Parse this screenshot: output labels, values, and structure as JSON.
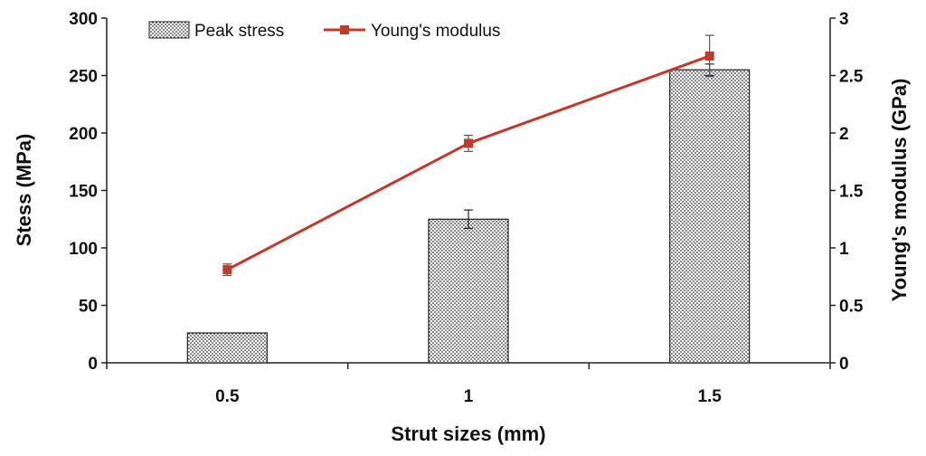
{
  "chart_data": {
    "type": "bar+line",
    "categories": [
      "0.5",
      "1",
      "1.5"
    ],
    "xlabel": "Strut sizes (mm)",
    "ylabel_left": "Stess (MPa)",
    "ylabel_right": "Young's modulus (GPa)",
    "ylim_left": [
      0,
      300
    ],
    "ylim_right": [
      0,
      3
    ],
    "yticks_left": [
      "0",
      "50",
      "100",
      "150",
      "200",
      "250",
      "300"
    ],
    "yticks_right": [
      "0",
      "0.5",
      "1",
      "1.5",
      "2",
      "2.5",
      "3"
    ],
    "grid": false,
    "legend_position": "top",
    "series": [
      {
        "name": "Peak stress",
        "type": "bar",
        "axis": "left",
        "values": [
          26,
          125,
          255
        ],
        "errors": [
          0,
          8,
          5
        ]
      },
      {
        "name": "Young's modulus",
        "type": "line",
        "axis": "right",
        "color": "#c0392b",
        "values": [
          0.81,
          1.91,
          2.67
        ],
        "errors": [
          0.05,
          0.07,
          0.18
        ]
      }
    ]
  }
}
